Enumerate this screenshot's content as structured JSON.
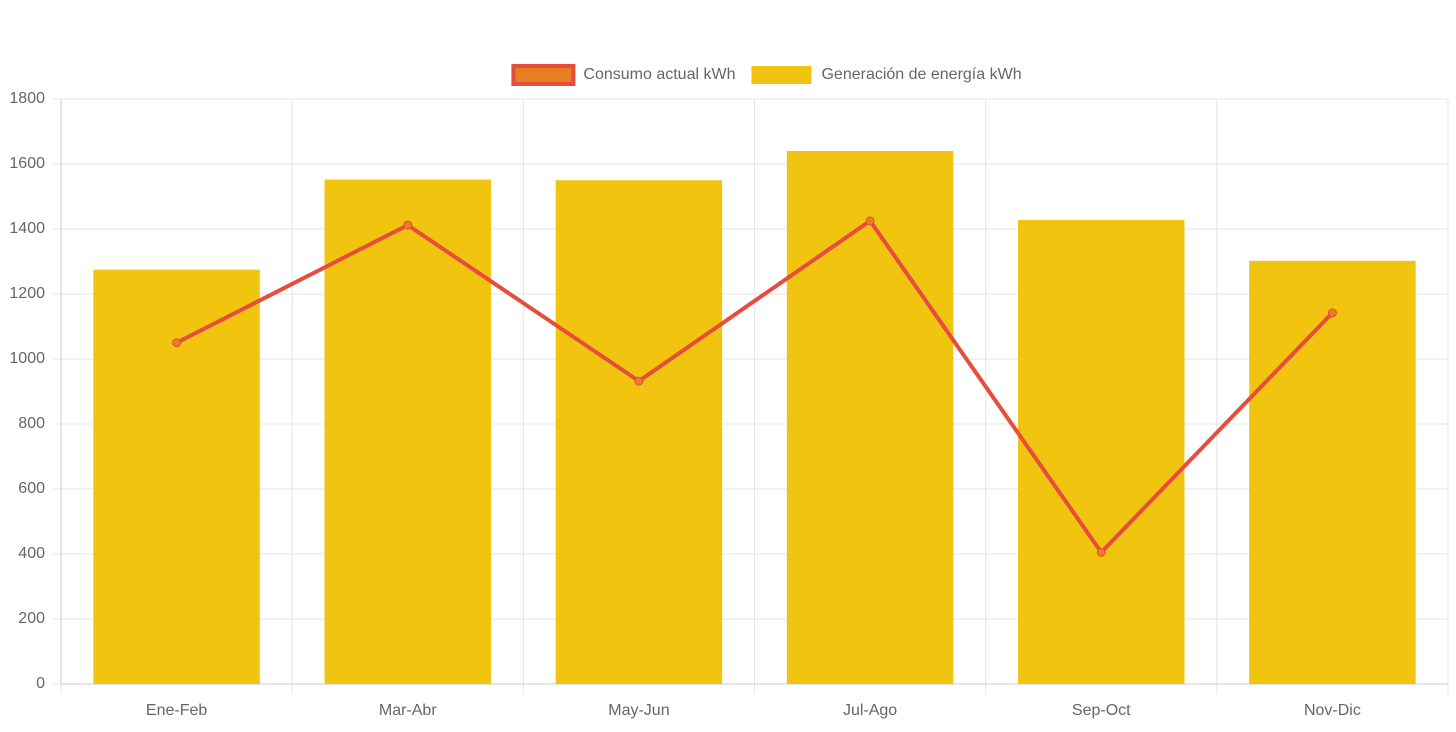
{
  "chart_data": {
    "type": "bar",
    "categories": [
      "Ene-Feb",
      "Mar-Abr",
      "May-Jun",
      "Jul-Ago",
      "Sep-Oct",
      "Nov-Dic"
    ],
    "series": [
      {
        "name": "Consumo actual kWh",
        "type": "line",
        "color": "#e74c3c",
        "point_color": "#e67e22",
        "values": [
          1050,
          1412,
          932,
          1425,
          405,
          1142
        ]
      },
      {
        "name": "Generación de energía kWh",
        "type": "bar",
        "color": "#f1c40f",
        "values": [
          1275,
          1552,
          1550,
          1640,
          1428,
          1302
        ]
      }
    ],
    "ylim": [
      0,
      1800
    ],
    "yticks": [
      0,
      200,
      400,
      600,
      800,
      1000,
      1200,
      1400,
      1600,
      1800
    ],
    "grid": true,
    "legend": "top"
  }
}
